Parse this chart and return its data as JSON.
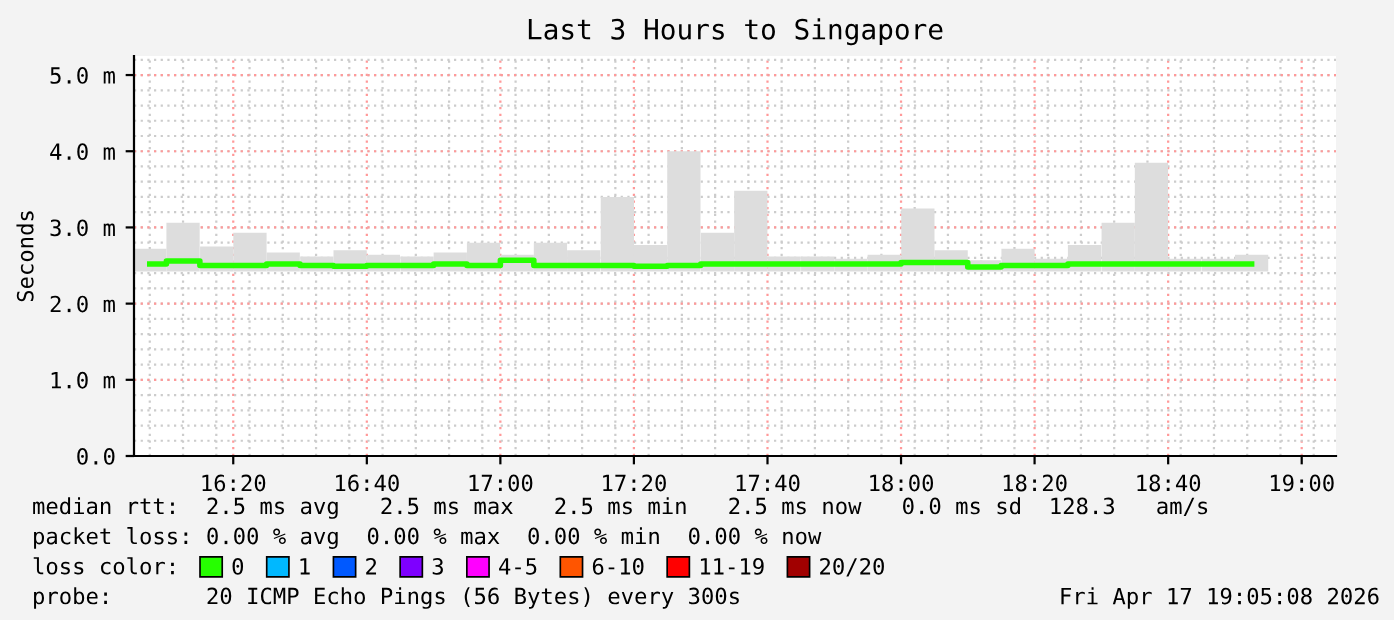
{
  "chart_data": {
    "type": "step",
    "title": "Last 3 Hours to Singapore",
    "ylabel": "Seconds",
    "legend_title": "loss color:",
    "x": [
      16.125,
      16.208,
      16.292,
      16.375,
      16.458,
      16.542,
      16.625,
      16.708,
      16.792,
      16.875,
      16.958,
      17.042,
      17.125,
      17.208,
      17.292,
      17.375,
      17.458,
      17.542,
      17.625,
      17.708,
      17.792,
      17.875,
      17.958,
      18.042,
      18.125,
      18.208,
      18.292,
      18.375,
      18.458,
      18.542,
      18.625,
      18.708,
      18.792,
      18.875
    ],
    "series": [
      {
        "type": "bar",
        "color": "#dddddd",
        "base": [
          2.42,
          2.42,
          2.42,
          2.42,
          2.42,
          2.42,
          2.42,
          2.42,
          2.42,
          2.42,
          2.42,
          2.42,
          2.42,
          2.42,
          2.42,
          2.42,
          2.42,
          2.42,
          2.42,
          2.42,
          2.42,
          2.42,
          2.42,
          2.42,
          2.42,
          2.42,
          2.42,
          2.42,
          2.42,
          2.42,
          2.42,
          2.42,
          2.42,
          2.42
        ],
        "values": [
          0.3,
          0.64,
          0.33,
          0.51,
          0.25,
          0.2,
          0.28,
          0.22,
          0.2,
          0.25,
          0.38,
          0.22,
          0.38,
          0.28,
          0.98,
          0.35,
          1.58,
          0.51,
          1.06,
          0.2,
          0.2,
          0.17,
          0.22,
          0.83,
          0.28,
          0.15,
          0.3,
          0.17,
          0.35,
          0.64,
          1.43,
          0.17,
          0.17,
          0.22
        ]
      },
      {
        "name": "0",
        "color": "#26ff00",
        "values": [
          2.52,
          2.56,
          2.5,
          2.5,
          2.52,
          2.5,
          2.49,
          2.5,
          2.5,
          2.52,
          2.5,
          2.57,
          2.5,
          2.5,
          2.5,
          2.49,
          2.5,
          2.52,
          2.52,
          2.52,
          2.52,
          2.52,
          2.52,
          2.54,
          2.54,
          2.48,
          2.5,
          2.5,
          2.52,
          2.52,
          2.52,
          2.52,
          2.52,
          2.52
        ]
      },
      {
        "type": "step",
        "name": "1",
        "color": "#00b8ff",
        "values": [
          null,
          null,
          null,
          null,
          null,
          null,
          null,
          null,
          null,
          null,
          null,
          null,
          null,
          null,
          null,
          null,
          null,
          null,
          null,
          null,
          null,
          null,
          null,
          null,
          null,
          null,
          null,
          null,
          null,
          null,
          null,
          null,
          null,
          null
        ]
      },
      {
        "type": "step",
        "name": "2",
        "color": "#0059ff",
        "values": [
          null,
          null,
          null,
          null,
          null,
          null,
          null,
          null,
          null,
          null,
          null,
          null,
          null,
          null,
          null,
          null,
          null,
          null,
          null,
          null,
          null,
          null,
          null,
          null,
          null,
          null,
          null,
          null,
          null,
          null,
          null,
          null,
          null,
          null
        ]
      },
      {
        "type": "step",
        "name": "3",
        "color": "#7e00ff",
        "values": [
          null,
          null,
          null,
          null,
          null,
          null,
          null,
          null,
          null,
          null,
          null,
          null,
          null,
          null,
          null,
          null,
          null,
          null,
          null,
          null,
          null,
          null,
          null,
          null,
          null,
          null,
          null,
          null,
          null,
          null,
          null,
          null,
          null,
          null
        ]
      },
      {
        "type": "step",
        "name": "4-5",
        "color": "#ff00ff",
        "values": [
          null,
          null,
          null,
          null,
          null,
          null,
          null,
          null,
          null,
          null,
          null,
          null,
          null,
          null,
          null,
          null,
          null,
          null,
          null,
          null,
          null,
          null,
          null,
          null,
          null,
          null,
          null,
          null,
          null,
          null,
          null,
          null,
          null,
          null
        ]
      },
      {
        "type": "step",
        "name": "6-10",
        "color": "#ff5500",
        "values": [
          null,
          null,
          null,
          null,
          null,
          null,
          null,
          null,
          null,
          null,
          null,
          null,
          null,
          null,
          null,
          null,
          null,
          null,
          null,
          null,
          null,
          null,
          null,
          null,
          null,
          null,
          null,
          null,
          null,
          null,
          null,
          null,
          null,
          null
        ]
      },
      {
        "type": "step",
        "name": "11-19",
        "color": "#ff0000",
        "values": [
          null,
          null,
          null,
          null,
          null,
          null,
          null,
          null,
          null,
          null,
          null,
          null,
          null,
          null,
          null,
          null,
          null,
          null,
          null,
          null,
          null,
          null,
          null,
          null,
          null,
          null,
          null,
          null,
          null,
          null,
          null,
          null,
          null,
          null
        ]
      },
      {
        "type": "step",
        "name": "20/20",
        "color": "#a10000",
        "values": [
          null,
          null,
          null,
          null,
          null,
          null,
          null,
          null,
          null,
          null,
          null,
          null,
          null,
          null,
          null,
          null,
          null,
          null,
          null,
          null,
          null,
          null,
          null,
          null,
          null,
          null,
          null,
          null,
          null,
          null,
          null,
          null,
          null,
          null
        ]
      }
    ],
    "xlim": [
      16.0856,
      19.0856
    ],
    "xticks": [
      {
        "value": 16.3333,
        "label": "16:20"
      },
      {
        "value": 16.6667,
        "label": "16:40"
      },
      {
        "value": 17.0,
        "label": "17:00"
      },
      {
        "value": 17.3333,
        "label": "17:20"
      },
      {
        "value": 17.6667,
        "label": "17:40"
      },
      {
        "value": 18.0,
        "label": "18:00"
      },
      {
        "value": 18.3333,
        "label": "18:20"
      },
      {
        "value": 18.6667,
        "label": "18:40"
      },
      {
        "value": 19.0,
        "label": "19:00"
      }
    ],
    "ylim": [
      0,
      5.25
    ],
    "yticks": [
      {
        "value": 0,
        "label": "0.0"
      },
      {
        "value": 1,
        "label": "1.0 m"
      },
      {
        "value": 2,
        "label": "2.0 m"
      },
      {
        "value": 3,
        "label": "3.0 m"
      },
      {
        "value": 4,
        "label": "4.0 m"
      },
      {
        "value": 5,
        "label": "5.0 m"
      }
    ],
    "grid": true,
    "legend": "bottom",
    "annotations": [
      "median rtt:  2.5 ms avg   2.5 ms max   2.5 ms min   2.5 ms now   0.0 ms sd  128.3   am/s",
      "packet loss: 0.00 % avg  0.00 % max  0.00 % min  0.00 % now",
      "probe:       20 ICMP Echo Pings (56 Bytes) every 300s",
      "Fri Apr 17 19:05:08 2026"
    ]
  }
}
